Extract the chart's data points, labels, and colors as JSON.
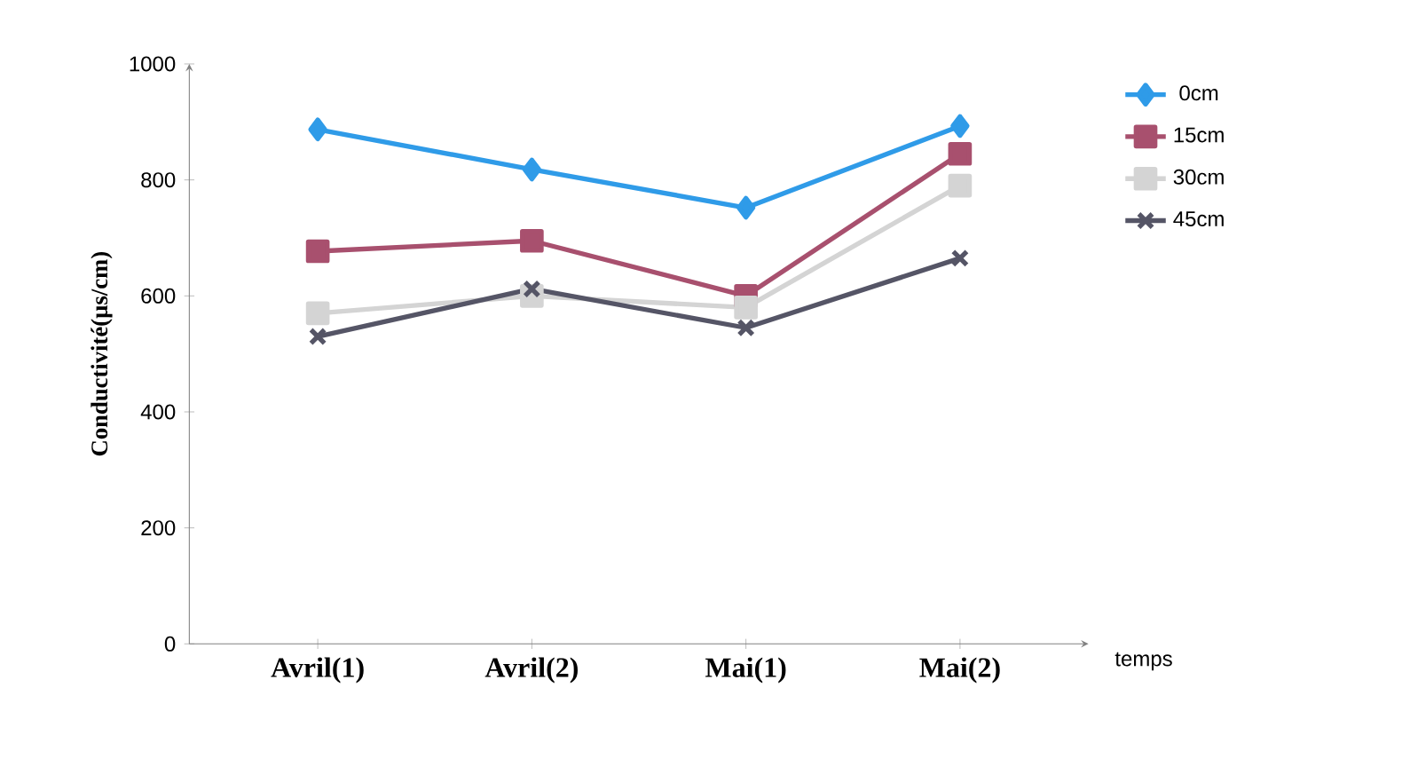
{
  "chart_data": {
    "type": "line",
    "ylabel": "Conductivité(µs/cm)",
    "xlabel": "temps",
    "categories": [
      "Avril(1)",
      "Avril(2)",
      "Mai(1)",
      "Mai(2)"
    ],
    "series": [
      {
        "name": "0cm",
        "color": "#2f9be8",
        "marker": "diamond",
        "values": [
          887,
          818,
          752,
          893
        ]
      },
      {
        "name": "15cm",
        "color": "#a8506e",
        "marker": "square",
        "values": [
          677,
          695,
          600,
          845
        ]
      },
      {
        "name": "30cm",
        "color": "#d4d4d4",
        "marker": "square",
        "values": [
          570,
          600,
          580,
          790
        ]
      },
      {
        "name": "45cm",
        "color": "#555566",
        "marker": "cross",
        "values": [
          530,
          612,
          545,
          665
        ]
      }
    ],
    "ylim": [
      0,
      1000
    ],
    "yticks": [
      0,
      200,
      400,
      600,
      800,
      1000
    ],
    "grid": false,
    "legend": "right",
    "line_style": "solid"
  }
}
